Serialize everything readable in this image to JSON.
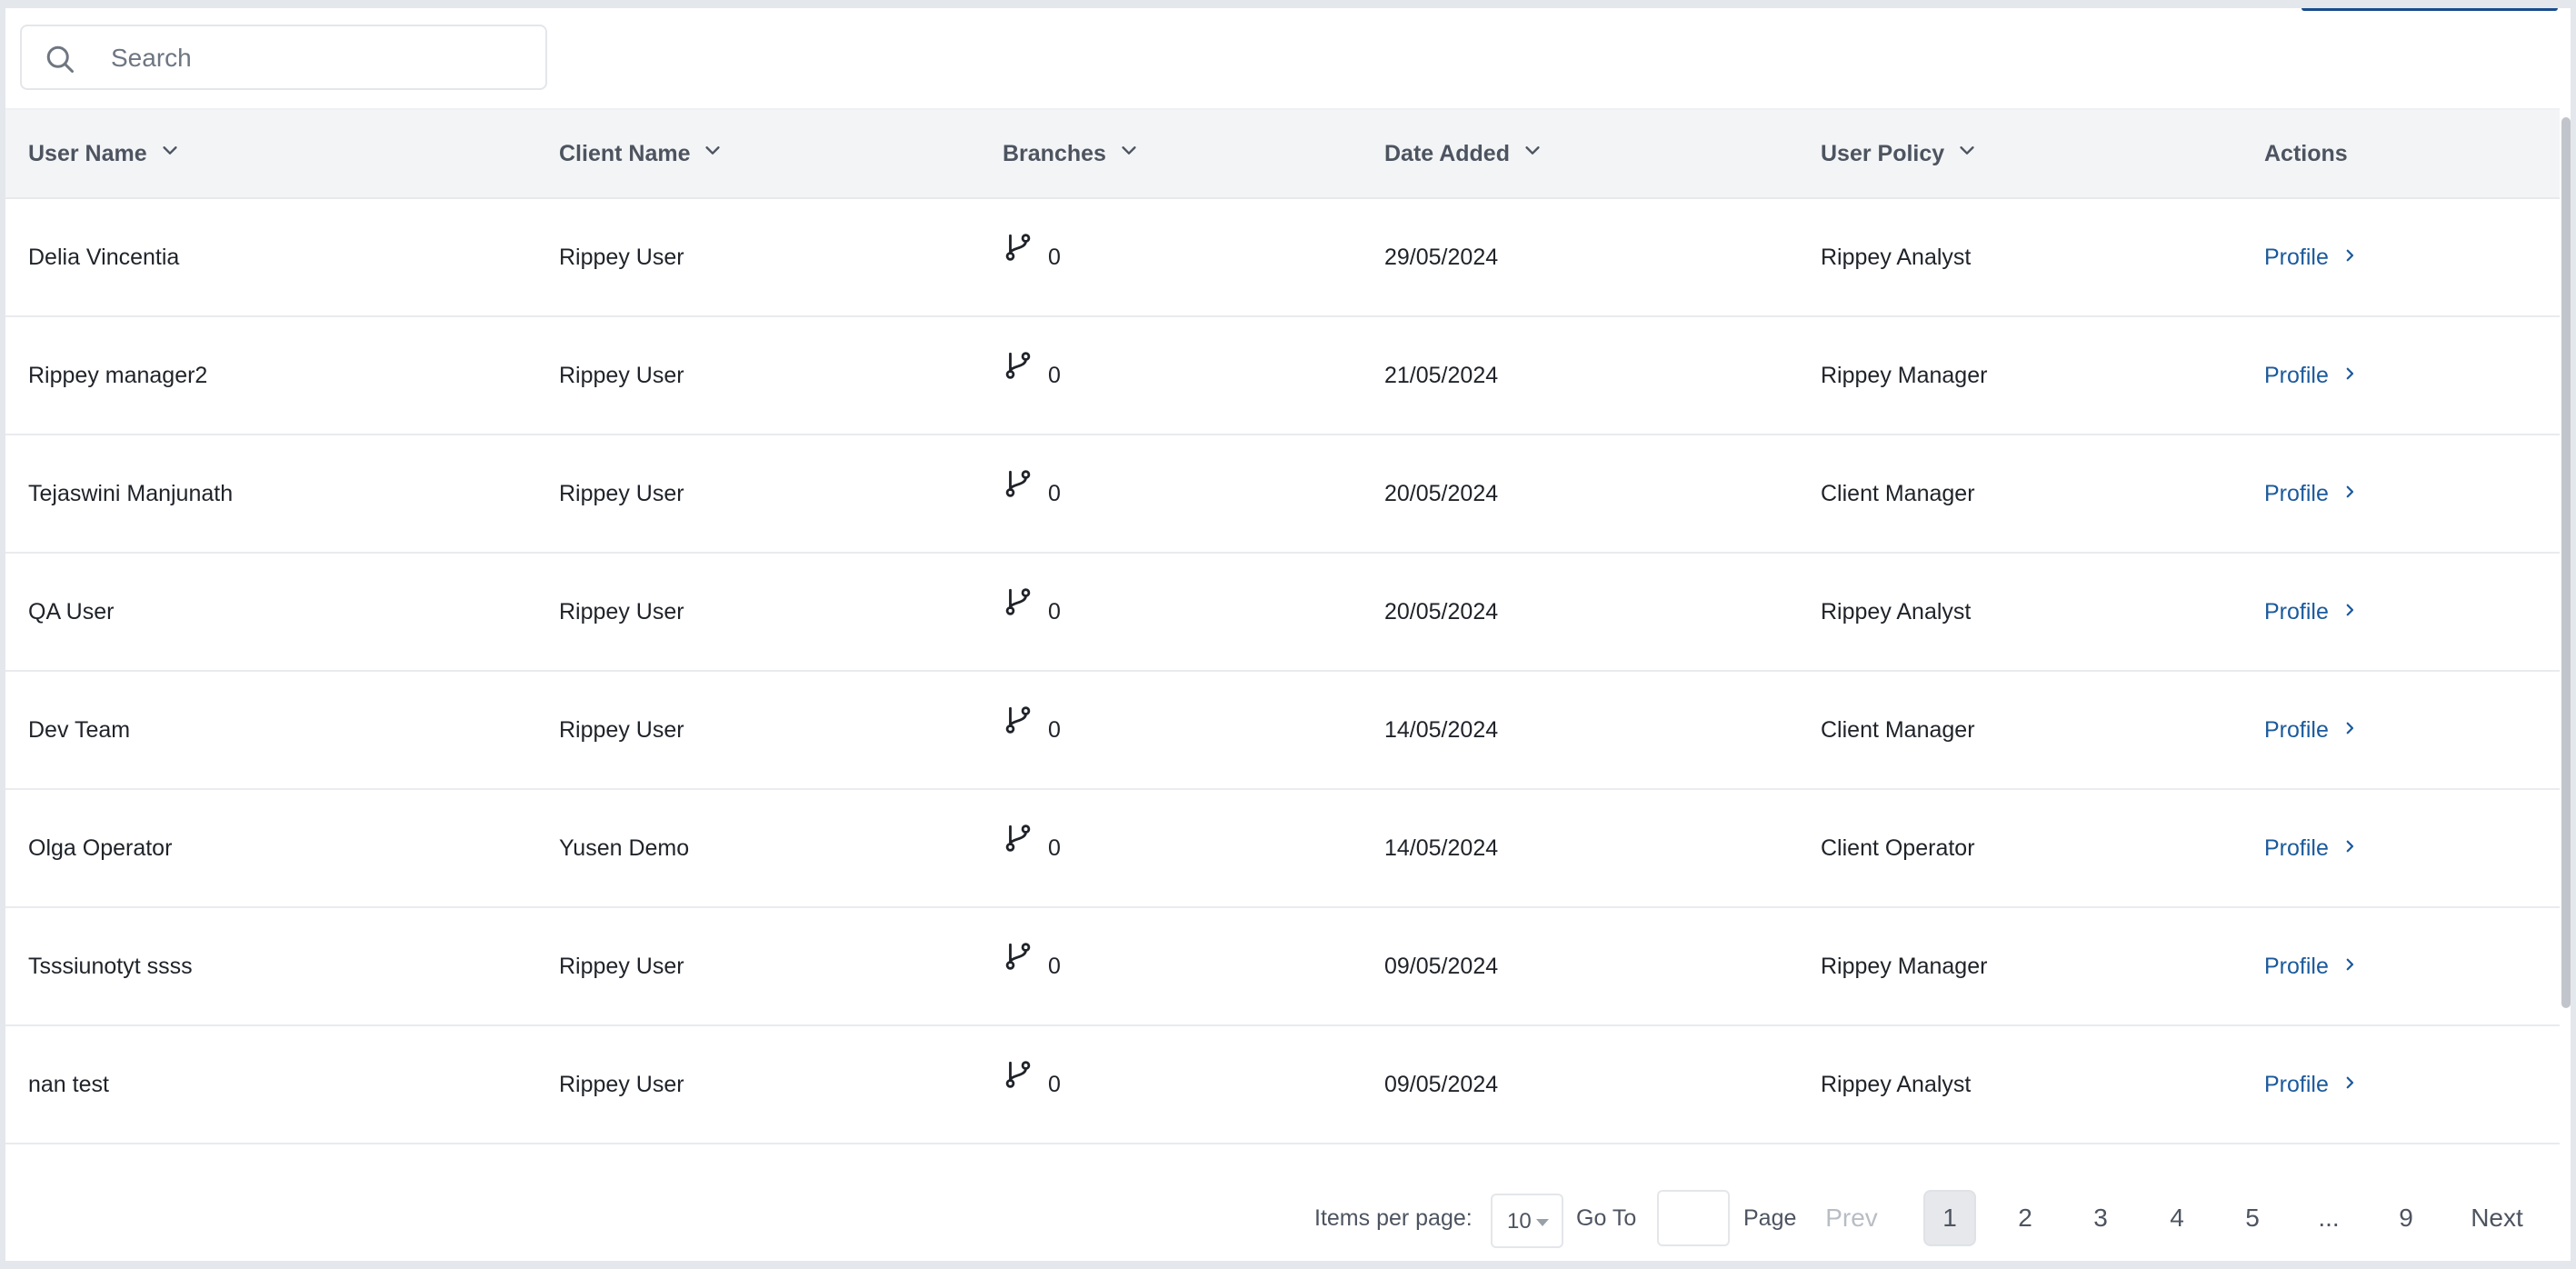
{
  "search": {
    "placeholder": "Search",
    "value": ""
  },
  "table": {
    "columns": [
      {
        "label": "User Name",
        "sortable": true
      },
      {
        "label": "Client Name",
        "sortable": true
      },
      {
        "label": "Branches",
        "sortable": true
      },
      {
        "label": "Date Added",
        "sortable": true
      },
      {
        "label": "User Policy",
        "sortable": true
      },
      {
        "label": "Actions",
        "sortable": false
      }
    ],
    "rows": [
      {
        "user_name": "Delia Vincentia",
        "client_name": "Rippey User",
        "branches": "0",
        "date_added": "29/05/2024",
        "user_policy": "Rippey Analyst",
        "action": "Profile"
      },
      {
        "user_name": "Rippey manager2",
        "client_name": "Rippey User",
        "branches": "0",
        "date_added": "21/05/2024",
        "user_policy": "Rippey Manager",
        "action": "Profile"
      },
      {
        "user_name": "Tejaswini Manjunath",
        "client_name": "Rippey User",
        "branches": "0",
        "date_added": "20/05/2024",
        "user_policy": "Client Manager",
        "action": "Profile"
      },
      {
        "user_name": "QA User",
        "client_name": "Rippey User",
        "branches": "0",
        "date_added": "20/05/2024",
        "user_policy": "Rippey Analyst",
        "action": "Profile"
      },
      {
        "user_name": "Dev Team",
        "client_name": "Rippey User",
        "branches": "0",
        "date_added": "14/05/2024",
        "user_policy": "Client Manager",
        "action": "Profile"
      },
      {
        "user_name": "Olga Operator",
        "client_name": "Yusen Demo",
        "branches": "0",
        "date_added": "14/05/2024",
        "user_policy": "Client Operator",
        "action": "Profile"
      },
      {
        "user_name": "Tsssiunotyt ssss",
        "client_name": "Rippey User",
        "branches": "0",
        "date_added": "09/05/2024",
        "user_policy": "Rippey Manager",
        "action": "Profile"
      },
      {
        "user_name": "nan test",
        "client_name": "Rippey User",
        "branches": "0",
        "date_added": "09/05/2024",
        "user_policy": "Rippey Analyst",
        "action": "Profile"
      }
    ]
  },
  "pagination": {
    "items_per_page_label": "Items per page:",
    "items_per_page_value": "10",
    "goto_label": "Go To",
    "goto_value": "",
    "page_label": "Page",
    "prev_label": "Prev",
    "next_label": "Next",
    "pages": [
      "1",
      "2",
      "3",
      "4",
      "5",
      "...",
      "9"
    ],
    "current_page": "1"
  },
  "colors": {
    "link": "#1b5a9c",
    "header_bg": "#f3f4f6",
    "accent": "#1a4c8c"
  },
  "icons": {
    "search": "search-icon",
    "sort": "chevron-down-icon",
    "branch": "git-branch-icon",
    "action": "chevron-right-icon"
  }
}
